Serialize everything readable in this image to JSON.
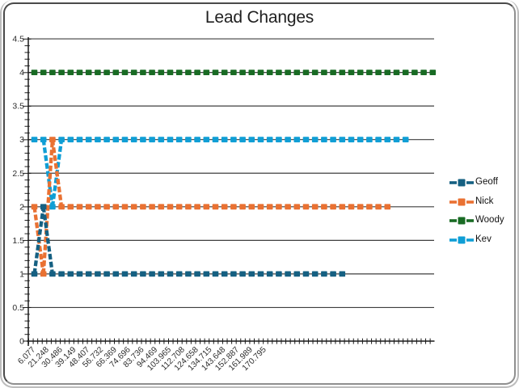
{
  "chart": {
    "title": "Lead Changes"
  },
  "chart_data": {
    "type": "line",
    "title": "Lead Changes",
    "xlabel": "",
    "ylabel": "",
    "ylim": [
      0,
      4.5
    ],
    "ytick_step": 0.5,
    "ytick_labels": [
      "0",
      "0.5",
      "1",
      "1.5",
      "2",
      "2.5",
      "3",
      "3.5",
      "4",
      "4.5"
    ],
    "x_tick_labels": [
      "6.077",
      "21.248",
      "30.486",
      "39.149",
      "48.407",
      "56.732",
      "66.369",
      "74.696",
      "83.736",
      "94.469",
      "103.965",
      "112.708",
      "124.658",
      "134.715",
      "143.648",
      "152.887",
      "161.989",
      "170.795"
    ],
    "grid": "horizontal",
    "legend_position": "right",
    "line_style": "dashed",
    "marker": "square",
    "series": [
      {
        "name": "Geoff",
        "color": "#156082",
        "values": [
          1,
          2,
          1,
          1,
          1,
          1,
          1,
          1,
          1,
          1,
          1,
          1,
          1,
          1,
          1,
          1,
          1,
          1,
          1,
          1,
          1,
          1,
          1,
          1,
          1,
          1,
          1,
          1,
          1,
          1,
          1,
          1,
          1,
          1,
          1
        ]
      },
      {
        "name": "Nick",
        "color": "#E97132",
        "values": [
          2,
          1,
          3,
          2,
          2,
          2,
          2,
          2,
          2,
          2,
          2,
          2,
          2,
          2,
          2,
          2,
          2,
          2,
          2,
          2,
          2,
          2,
          2,
          2,
          2,
          2,
          2,
          2,
          2,
          2,
          2,
          2,
          2,
          2,
          2,
          2,
          2,
          2,
          2,
          2
        ]
      },
      {
        "name": "Woody",
        "color": "#196B24",
        "values": [
          4,
          4,
          4,
          4,
          4,
          4,
          4,
          4,
          4,
          4,
          4,
          4,
          4,
          4,
          4,
          4,
          4,
          4,
          4,
          4,
          4,
          4,
          4,
          4,
          4,
          4,
          4,
          4,
          4,
          4,
          4,
          4,
          4,
          4,
          4,
          4,
          4,
          4,
          4,
          4,
          4,
          4,
          4,
          4,
          4
        ]
      },
      {
        "name": "Kev",
        "color": "#0F9ED5",
        "values": [
          3,
          3,
          2,
          3,
          3,
          3,
          3,
          3,
          3,
          3,
          3,
          3,
          3,
          3,
          3,
          3,
          3,
          3,
          3,
          3,
          3,
          3,
          3,
          3,
          3,
          3,
          3,
          3,
          3,
          3,
          3,
          3,
          3,
          3,
          3,
          3,
          3,
          3,
          3,
          3,
          3,
          3
        ]
      }
    ]
  },
  "colors": {
    "geoff": "#156082",
    "nick": "#E97132",
    "woody": "#196B24",
    "kev": "#0F9ED5",
    "gridline": "#3f3f3f",
    "axis": "#1a1a1a"
  }
}
